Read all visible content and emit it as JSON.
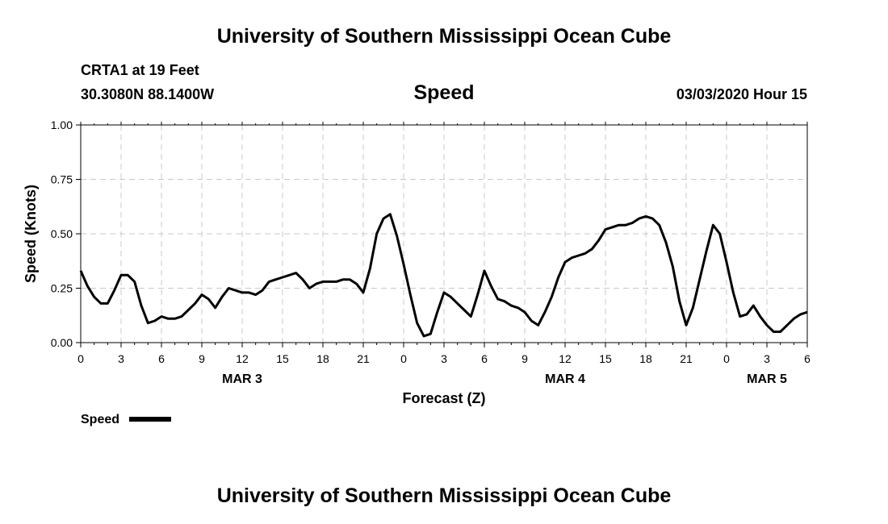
{
  "header": {
    "title": "University of Southern Mississippi Ocean Cube",
    "station": "CRTA1 at 19 Feet",
    "coordinates": "30.3080N 88.1400W",
    "variable": "Speed",
    "datetime": "03/03/2020 Hour 15"
  },
  "footer": {
    "title": "University of Southern Mississippi Ocean Cube"
  },
  "chart_data": {
    "type": "line",
    "title": "Speed",
    "xlabel": "Forecast (Z)",
    "ylabel": "Speed (Knots)",
    "ylim": [
      0,
      1
    ],
    "xlim": [
      0,
      54
    ],
    "grid": true,
    "y_ticks": [
      "0.00",
      "0.25",
      "0.50",
      "0.75",
      "1.00"
    ],
    "y_tick_values": [
      0,
      0.25,
      0.5,
      0.75,
      1.0
    ],
    "x_tick_labels": [
      "0",
      "3",
      "6",
      "9",
      "12",
      "15",
      "18",
      "21",
      "0",
      "3",
      "6",
      "9",
      "12",
      "15",
      "18",
      "21",
      "0",
      "3",
      "6"
    ],
    "date_labels": [
      {
        "label": "MAR 3",
        "hour": 12
      },
      {
        "label": "MAR 4",
        "hour": 36
      },
      {
        "label": "MAR 5",
        "hour": 51
      }
    ],
    "legend": {
      "label": "Speed",
      "placement": "bottom-left"
    },
    "series": [
      {
        "name": "Speed",
        "x": [
          0,
          0.5,
          1,
          1.5,
          2,
          2.5,
          3,
          3.5,
          4,
          4.5,
          5,
          5.5,
          6,
          6.5,
          7,
          7.5,
          8,
          8.5,
          9,
          9.5,
          10,
          10.5,
          11,
          11.5,
          12,
          12.5,
          13,
          13.5,
          14,
          14.5,
          15,
          15.5,
          16,
          16.5,
          17,
          17.5,
          18,
          18.5,
          19,
          19.5,
          20,
          20.5,
          21,
          21.5,
          22,
          22.5,
          23,
          23.5,
          24,
          24.5,
          25,
          25.5,
          26,
          26.5,
          27,
          27.5,
          28,
          28.5,
          29,
          29.5,
          30,
          30.5,
          31,
          31.5,
          32,
          32.5,
          33,
          33.5,
          34,
          34.5,
          35,
          35.5,
          36,
          36.5,
          37,
          37.5,
          38,
          38.5,
          39,
          39.5,
          40,
          40.5,
          41,
          41.5,
          42,
          42.5,
          43,
          43.5,
          44,
          44.5,
          45,
          45.5,
          46,
          46.5,
          47,
          47.5,
          48,
          48.5,
          49,
          49.5,
          50,
          50.5,
          51,
          51.5,
          52,
          52.5,
          53,
          53.5,
          54
        ],
        "values": [
          0.33,
          0.26,
          0.21,
          0.18,
          0.18,
          0.24,
          0.31,
          0.31,
          0.28,
          0.17,
          0.09,
          0.1,
          0.12,
          0.11,
          0.11,
          0.12,
          0.15,
          0.18,
          0.22,
          0.2,
          0.16,
          0.21,
          0.25,
          0.24,
          0.23,
          0.23,
          0.22,
          0.24,
          0.28,
          0.29,
          0.3,
          0.31,
          0.32,
          0.29,
          0.25,
          0.27,
          0.28,
          0.28,
          0.28,
          0.29,
          0.29,
          0.27,
          0.23,
          0.34,
          0.5,
          0.57,
          0.59,
          0.49,
          0.36,
          0.22,
          0.09,
          0.03,
          0.04,
          0.14,
          0.23,
          0.21,
          0.18,
          0.15,
          0.12,
          0.22,
          0.33,
          0.26,
          0.2,
          0.19,
          0.17,
          0.16,
          0.14,
          0.1,
          0.08,
          0.14,
          0.21,
          0.3,
          0.37,
          0.39,
          0.4,
          0.41,
          0.43,
          0.47,
          0.52,
          0.53,
          0.54,
          0.54,
          0.55,
          0.57,
          0.58,
          0.57,
          0.54,
          0.46,
          0.35,
          0.19,
          0.08,
          0.16,
          0.29,
          0.42,
          0.54,
          0.5,
          0.37,
          0.23,
          0.12,
          0.13,
          0.17,
          0.12,
          0.08,
          0.05,
          0.05,
          0.08,
          0.11,
          0.13,
          0.14
        ]
      }
    ]
  }
}
